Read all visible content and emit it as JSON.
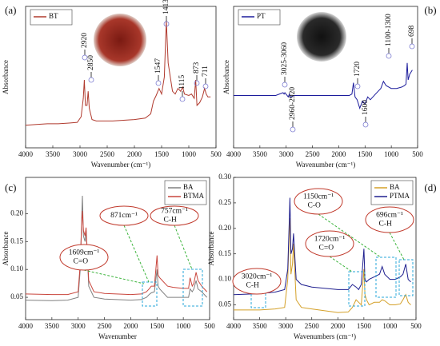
{
  "chart_data": [
    {
      "type": "line",
      "panel_label": "(a)",
      "x_label": "Wavenumber (cm⁻¹)",
      "y_label": "Absorbance",
      "legend": "upper left",
      "xlim": [
        4000,
        500
      ],
      "xticks": [
        4000,
        3500,
        3000,
        2500,
        2000,
        1500,
        1000,
        500
      ],
      "ylim": [
        0,
        1
      ],
      "x": [
        4000,
        3800,
        3600,
        3400,
        3200,
        3050,
        2980,
        2940,
        2920,
        2900,
        2870,
        2850,
        2830,
        2780,
        2700,
        2400,
        2000,
        1800,
        1700,
        1650,
        1600,
        1547,
        1500,
        1450,
        1413,
        1380,
        1300,
        1250,
        1200,
        1150,
        1115,
        1080,
        1000,
        950,
        900,
        873,
        850,
        800,
        750,
        711,
        680,
        650,
        600
      ],
      "series": [
        {
          "name": "BT",
          "color": "#b03a2e",
          "values": [
            0.16,
            0.165,
            0.17,
            0.17,
            0.175,
            0.18,
            0.22,
            0.35,
            0.48,
            0.3,
            0.3,
            0.4,
            0.28,
            0.2,
            0.19,
            0.19,
            0.2,
            0.21,
            0.24,
            0.33,
            0.37,
            0.42,
            0.38,
            0.5,
            0.9,
            0.6,
            0.4,
            0.38,
            0.42,
            0.4,
            0.43,
            0.38,
            0.37,
            0.38,
            0.35,
            0.48,
            0.3,
            0.32,
            0.36,
            0.42,
            0.38,
            0.36,
            0.36
          ]
        }
      ],
      "annotations": [
        {
          "text": "2920"
        },
        {
          "text": "2850"
        },
        {
          "text": "1547"
        },
        {
          "text": "1413"
        },
        {
          "text": "1115"
        },
        {
          "text": "873"
        },
        {
          "text": "711"
        }
      ]
    },
    {
      "type": "line",
      "panel_label": "(b)",
      "x_label": "Wavenumber (cm⁻¹)",
      "y_label": "Absorbance",
      "legend": "upper left",
      "xlim": [
        4000,
        500
      ],
      "xticks": [
        4000,
        3500,
        3000,
        2500,
        2000,
        1500,
        1000,
        500
      ],
      "ylim": [
        0,
        1
      ],
      "x": [
        4000,
        3500,
        3200,
        3060,
        3040,
        3025,
        2980,
        2960,
        2940,
        2920,
        2850,
        2500,
        2000,
        1800,
        1750,
        1720,
        1690,
        1650,
        1600,
        1550,
        1500,
        1450,
        1400,
        1300,
        1250,
        1200,
        1150,
        1100,
        1050,
        1000,
        900,
        800,
        750,
        720,
        698,
        680,
        650,
        600
      ],
      "series": [
        {
          "name": "PT",
          "color": "#1c1c9c",
          "values": [
            0.37,
            0.37,
            0.37,
            0.39,
            0.38,
            0.39,
            0.37,
            0.36,
            0.38,
            0.36,
            0.37,
            0.37,
            0.37,
            0.37,
            0.38,
            0.46,
            0.36,
            0.34,
            0.28,
            0.33,
            0.31,
            0.36,
            0.34,
            0.38,
            0.4,
            0.42,
            0.47,
            0.44,
            0.43,
            0.42,
            0.42,
            0.43,
            0.44,
            0.45,
            0.6,
            0.48,
            0.52,
            0.55
          ]
        }
      ],
      "annotations": [
        {
          "text": "3025-3060"
        },
        {
          "text": "2960-2920"
        },
        {
          "text": "1720"
        },
        {
          "text": "1600"
        },
        {
          "text": "1100-1300"
        },
        {
          "text": "698"
        }
      ]
    },
    {
      "type": "line",
      "panel_label": "(c)",
      "x_label": "Wavenumber",
      "y_label": "Absorbance",
      "legend": "upper right",
      "xlim": [
        4000,
        500
      ],
      "xticks": [
        4000,
        3500,
        3000,
        2500,
        2000,
        1500,
        1000,
        500
      ],
      "ylim": [
        0.01,
        0.265
      ],
      "yticks": [
        0.05,
        {
          "value": 0.1,
          "label": "0.10"
        },
        0.15,
        {
          "value": 0.2,
          "label": "0.20"
        }
      ],
      "x": [
        4000,
        3500,
        3200,
        3000,
        2960,
        2930,
        2920,
        2900,
        2870,
        2850,
        2800,
        2700,
        2500,
        2000,
        1800,
        1700,
        1650,
        1609,
        1550,
        1500,
        1480,
        1450,
        1400,
        1350,
        1300,
        1200,
        1100,
        1000,
        900,
        871,
        830,
        800,
        757,
        720,
        650,
        600,
        550
      ],
      "series": [
        {
          "name": "BA",
          "color": "#808080",
          "values": [
            0.045,
            0.044,
            0.045,
            0.05,
            0.1,
            0.2,
            0.232,
            0.16,
            0.15,
            0.17,
            0.07,
            0.05,
            0.047,
            0.045,
            0.046,
            0.05,
            0.055,
            0.058,
            0.06,
            0.1,
            0.07,
            0.065,
            0.06,
            0.055,
            0.05,
            0.05,
            0.05,
            0.05,
            0.05,
            0.065,
            0.06,
            0.065,
            0.08,
            0.065,
            0.06,
            0.055,
            0.05
          ]
        },
        {
          "name": "BTMA",
          "color": "#c9463d",
          "values": [
            0.056,
            0.055,
            0.055,
            0.06,
            0.11,
            0.19,
            0.205,
            0.17,
            0.16,
            0.175,
            0.08,
            0.06,
            0.057,
            0.055,
            0.056,
            0.06,
            0.065,
            0.07,
            0.07,
            0.125,
            0.09,
            0.085,
            0.08,
            0.075,
            0.07,
            0.068,
            0.067,
            0.066,
            0.066,
            0.085,
            0.07,
            0.075,
            0.095,
            0.08,
            0.07,
            0.065,
            0.06
          ]
        }
      ],
      "annotations": [
        {
          "lines": [
            "871cm⁻¹"
          ]
        },
        {
          "lines": [
            "757cm⁻¹",
            "C-H"
          ]
        },
        {
          "lines": [
            "1609cm⁻¹",
            "C=O"
          ]
        }
      ]
    },
    {
      "type": "line",
      "panel_label": "(d)",
      "x_label": "Wavenumbers (cm⁻¹)",
      "y_label": "Absorbance",
      "legend": "upper right",
      "xlim": [
        4000,
        500
      ],
      "xticks": [
        4000,
        3500,
        3000,
        2500,
        2000,
        1500,
        1000,
        500
      ],
      "ylim": [
        0.021,
        0.3
      ],
      "yticks": [
        0.05,
        {
          "value": 0.1,
          "label": "0.10"
        },
        0.15,
        {
          "value": 0.2,
          "label": "0.20"
        },
        0.25,
        {
          "value": 0.3,
          "label": "0.30"
        }
      ],
      "x": [
        4000,
        3500,
        3200,
        3020,
        2960,
        2930,
        2920,
        2900,
        2870,
        2850,
        2800,
        2700,
        2500,
        2000,
        1800,
        1720,
        1650,
        1600,
        1550,
        1500,
        1480,
        1450,
        1400,
        1300,
        1200,
        1150,
        1100,
        1000,
        900,
        800,
        750,
        696,
        650,
        600
      ],
      "series": [
        {
          "name": "BA",
          "color": "#d4a028",
          "values": [
            0.04,
            0.04,
            0.042,
            0.045,
            0.1,
            0.2,
            0.22,
            0.11,
            0.13,
            0.17,
            0.06,
            0.045,
            0.042,
            0.035,
            0.036,
            0.045,
            0.06,
            0.055,
            0.05,
            0.12,
            0.07,
            0.06,
            0.05,
            0.055,
            0.055,
            0.06,
            0.058,
            0.05,
            0.05,
            0.052,
            0.06,
            0.07,
            0.055,
            0.05
          ]
        },
        {
          "name": "PTMA",
          "color": "#1f1f8f",
          "values": [
            0.07,
            0.072,
            0.075,
            0.08,
            0.12,
            0.22,
            0.26,
            0.15,
            0.16,
            0.19,
            0.1,
            0.09,
            0.085,
            0.08,
            0.08,
            0.09,
            0.085,
            0.08,
            0.09,
            0.16,
            0.1,
            0.095,
            0.1,
            0.105,
            0.11,
            0.125,
            0.11,
            0.1,
            0.1,
            0.105,
            0.11,
            0.13,
            0.1,
            0.095
          ]
        }
      ],
      "annotations": [
        {
          "lines": [
            "3020cm⁻¹",
            "C-H"
          ]
        },
        {
          "lines": [
            "1720cm⁻¹",
            "C=O"
          ]
        },
        {
          "lines": [
            "1150cm⁻¹",
            "C-O"
          ]
        },
        {
          "lines": [
            "696cm⁻¹",
            "C-H"
          ]
        }
      ]
    }
  ]
}
